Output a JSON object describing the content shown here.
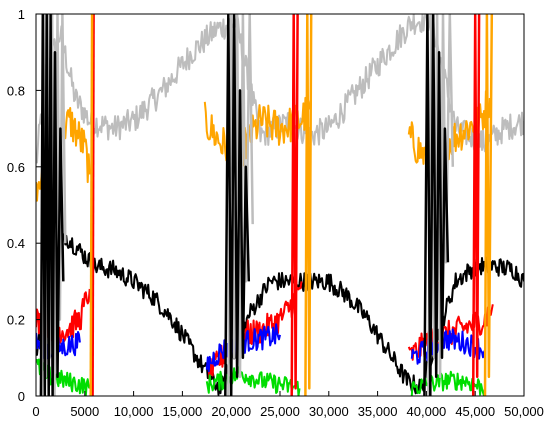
{
  "chart_data": {
    "type": "line",
    "title": "",
    "xlabel": "",
    "ylabel": "",
    "xlim": [
      0,
      50000
    ],
    "ylim": [
      0,
      1
    ],
    "grid": false,
    "legend": "none",
    "x_ticks": [
      0,
      5000,
      10000,
      15000,
      20000,
      25000,
      30000,
      35000,
      40000,
      45000,
      50000
    ],
    "x_tick_labels": [
      "0",
      "5000",
      "10,000",
      "15,000",
      "20,000",
      "25,000",
      "30,000",
      "35,000",
      "40,000",
      "45,000",
      "50,000"
    ],
    "y_ticks": [
      0,
      0.2,
      0.4,
      0.6,
      0.8,
      1
    ],
    "y_tick_labels": [
      "0",
      "0.2",
      "0.4",
      "0.6",
      "0.8",
      "1"
    ],
    "series": [
      {
        "color": "#bdbdbd",
        "style": "noisy",
        "noise": 0.035,
        "segments": [
          [
            [
              0,
              0.6
            ],
            [
              1000,
              0.85
            ],
            [
              2500,
              0.95
            ],
            [
              4000,
              0.78
            ],
            [
              5500,
              0.72
            ],
            [
              8000,
              0.7
            ],
            [
              10000,
              0.72
            ],
            [
              13000,
              0.8
            ],
            [
              16000,
              0.9
            ],
            [
              18500,
              0.96
            ],
            [
              20500,
              0.98
            ],
            [
              23000,
              0.68
            ],
            [
              26000,
              0.72
            ],
            [
              28000,
              0.68
            ],
            [
              30000,
              0.7
            ],
            [
              33000,
              0.8
            ],
            [
              36000,
              0.9
            ],
            [
              38500,
              0.98
            ],
            [
              40500,
              0.99
            ],
            [
              43000,
              0.7
            ],
            [
              46000,
              0.66
            ],
            [
              48000,
              0.7
            ],
            [
              50000,
              0.72
            ]
          ]
        ]
      },
      {
        "color": "#ffa500",
        "style": "noisy",
        "noise": 0.05,
        "segments": [
          [
            [
              0,
              0.55
            ],
            [
              800,
              0.62
            ],
            [
              2000,
              0.68
            ],
            [
              3500,
              0.72
            ],
            [
              5000,
              0.65
            ],
            [
              5500,
              0.58
            ]
          ],
          [
            [
              17300,
              0.72
            ],
            [
              19000,
              0.66
            ],
            [
              21000,
              0.64
            ],
            [
              23000,
              0.72
            ],
            [
              25000,
              0.7
            ],
            [
              27000,
              0.72
            ],
            [
              28000,
              0.75
            ]
          ],
          [
            [
              38200,
              0.68
            ],
            [
              40000,
              0.62
            ],
            [
              42000,
              0.66
            ],
            [
              44000,
              0.7
            ],
            [
              45500,
              0.72
            ],
            [
              46500,
              0.78
            ]
          ]
        ]
      },
      {
        "color": "#000000",
        "style": "noisy",
        "noise": 0.025,
        "segments": [
          [
            [
              0,
              0.12
            ],
            [
              1500,
              0.3
            ],
            [
              3000,
              0.42
            ],
            [
              4500,
              0.38
            ],
            [
              6000,
              0.34
            ],
            [
              8000,
              0.33
            ],
            [
              10000,
              0.3
            ],
            [
              12000,
              0.26
            ],
            [
              14000,
              0.2
            ],
            [
              16000,
              0.12
            ],
            [
              18000,
              0.04
            ],
            [
              19000,
              0.02
            ],
            [
              20000,
              0.1
            ],
            [
              22000,
              0.22
            ],
            [
              24000,
              0.3
            ],
            [
              26000,
              0.3
            ],
            [
              28000,
              0.3
            ],
            [
              30000,
              0.3
            ],
            [
              32000,
              0.26
            ],
            [
              34000,
              0.2
            ],
            [
              36000,
              0.12
            ],
            [
              38000,
              0.04
            ],
            [
              39500,
              0.02
            ],
            [
              41000,
              0.15
            ],
            [
              43000,
              0.3
            ],
            [
              45000,
              0.34
            ],
            [
              47000,
              0.34
            ],
            [
              49000,
              0.33
            ],
            [
              50000,
              0.3
            ]
          ]
        ]
      },
      {
        "color": "#ff0000",
        "style": "noisy",
        "noise": 0.035,
        "segments": [
          [
            [
              0,
              0.2
            ],
            [
              1500,
              0.18
            ],
            [
              3000,
              0.17
            ],
            [
              4500,
              0.2
            ],
            [
              5500,
              0.28
            ]
          ],
          [
            [
              17500,
              0.05
            ],
            [
              19000,
              0.1
            ],
            [
              21000,
              0.16
            ],
            [
              23000,
              0.17
            ],
            [
              25000,
              0.2
            ],
            [
              26500,
              0.25
            ],
            [
              27200,
              0.3
            ]
          ],
          [
            [
              38200,
              0.1
            ],
            [
              40000,
              0.14
            ],
            [
              42000,
              0.16
            ],
            [
              44000,
              0.18
            ],
            [
              46000,
              0.2
            ],
            [
              46800,
              0.24
            ]
          ]
        ]
      },
      {
        "color": "#0000ff",
        "style": "noisy",
        "noise": 0.03,
        "segments": [
          [
            [
              0,
              0.14
            ],
            [
              1500,
              0.12
            ],
            [
              3000,
              0.13
            ],
            [
              4500,
              0.14
            ]
          ],
          [
            [
              17500,
              0.08
            ],
            [
              19000,
              0.12
            ],
            [
              21000,
              0.14
            ],
            [
              23000,
              0.15
            ],
            [
              25000,
              0.16
            ]
          ],
          [
            [
              38500,
              0.1
            ],
            [
              40000,
              0.12
            ],
            [
              42000,
              0.15
            ],
            [
              44000,
              0.14
            ],
            [
              46000,
              0.12
            ]
          ]
        ]
      },
      {
        "color": "#00dd00",
        "style": "noisy",
        "noise": 0.025,
        "segments": [
          [
            [
              0,
              0.08
            ],
            [
              1500,
              0.05
            ],
            [
              3000,
              0.04
            ],
            [
              4500,
              0.03
            ],
            [
              5500,
              0.02
            ]
          ],
          [
            [
              17500,
              0.03
            ],
            [
              19000,
              0.04
            ],
            [
              21000,
              0.06
            ],
            [
              23000,
              0.04
            ],
            [
              25000,
              0.03
            ],
            [
              27000,
              0.02
            ]
          ],
          [
            [
              38500,
              0.02
            ],
            [
              40000,
              0.03
            ],
            [
              42000,
              0.04
            ],
            [
              44000,
              0.04
            ],
            [
              46000,
              0.02
            ]
          ]
        ]
      },
      {
        "color": "#bdbdbd",
        "style": "spikes",
        "segments": [
          [
            [
              600,
              0.0
            ],
            [
              800,
              1.0
            ],
            [
              1000,
              0.05
            ],
            [
              1200,
              1.0
            ],
            [
              1400,
              0.1
            ],
            [
              1650,
              1.0
            ],
            [
              1900,
              0.0
            ],
            [
              2200,
              1.0
            ],
            [
              2450,
              0.2
            ],
            [
              2700,
              1.0
            ],
            [
              3000,
              0.4
            ]
          ],
          [
            [
              19700,
              0.0
            ],
            [
              20000,
              1.0
            ],
            [
              20300,
              0.1
            ],
            [
              20600,
              1.0
            ],
            [
              20900,
              0.05
            ],
            [
              21200,
              1.0
            ],
            [
              21500,
              0.3
            ],
            [
              21900,
              1.0
            ],
            [
              22200,
              0.45
            ]
          ],
          [
            [
              40200,
              0.0
            ],
            [
              40500,
              1.0
            ],
            [
              40800,
              0.1
            ],
            [
              41100,
              1.0
            ],
            [
              41400,
              0.05
            ],
            [
              41700,
              1.0
            ],
            [
              42000,
              0.35
            ],
            [
              42400,
              1.0
            ],
            [
              42700,
              0.6
            ]
          ]
        ]
      },
      {
        "color": "#000000",
        "style": "spikes",
        "segments": [
          [
            [
              500,
              0.0
            ],
            [
              700,
              1.0
            ],
            [
              900,
              0.0
            ],
            [
              1100,
              1.0
            ],
            [
              1300,
              0.0
            ],
            [
              1500,
              1.0
            ],
            [
              1700,
              0.0
            ],
            [
              1950,
              0.9
            ],
            [
              2200,
              0.05
            ],
            [
              2500,
              0.7
            ],
            [
              2800,
              0.3
            ]
          ],
          [
            [
              19400,
              0.0
            ],
            [
              19700,
              1.0
            ],
            [
              20000,
              0.0
            ],
            [
              20300,
              1.0
            ],
            [
              20600,
              0.05
            ],
            [
              20900,
              0.8
            ],
            [
              21200,
              0.1
            ],
            [
              21500,
              0.6
            ],
            [
              21800,
              0.3
            ]
          ],
          [
            [
              39800,
              0.0
            ],
            [
              40100,
              1.0
            ],
            [
              40400,
              0.0
            ],
            [
              40700,
              1.0
            ],
            [
              41000,
              0.05
            ],
            [
              41300,
              0.9
            ],
            [
              41600,
              0.1
            ],
            [
              41900,
              0.7
            ],
            [
              42200,
              0.35
            ]
          ]
        ]
      },
      {
        "color": "#ff0000",
        "style": "spikes",
        "segments": [
          [
            [
              5800,
              0.0
            ],
            [
              5900,
              1.0
            ]
          ],
          [
            [
              26200,
              0.0
            ],
            [
              26400,
              1.0
            ],
            [
              26600,
              0.02
            ],
            [
              26800,
              1.0
            ]
          ],
          [
            [
              44800,
              0.0
            ],
            [
              45000,
              1.0
            ],
            [
              45200,
              0.05
            ],
            [
              45400,
              1.0
            ]
          ]
        ]
      },
      {
        "color": "#ffa500",
        "style": "spikes",
        "segments": [
          [
            [
              5600,
              0.0
            ],
            [
              5750,
              1.0
            ]
          ],
          [
            [
              27600,
              0.0
            ],
            [
              27800,
              1.0
            ],
            [
              28000,
              0.02
            ],
            [
              28200,
              1.0
            ]
          ],
          [
            [
              46000,
              0.0
            ],
            [
              46200,
              1.0
            ],
            [
              46400,
              0.05
            ],
            [
              46700,
              1.0
            ]
          ]
        ]
      }
    ]
  }
}
